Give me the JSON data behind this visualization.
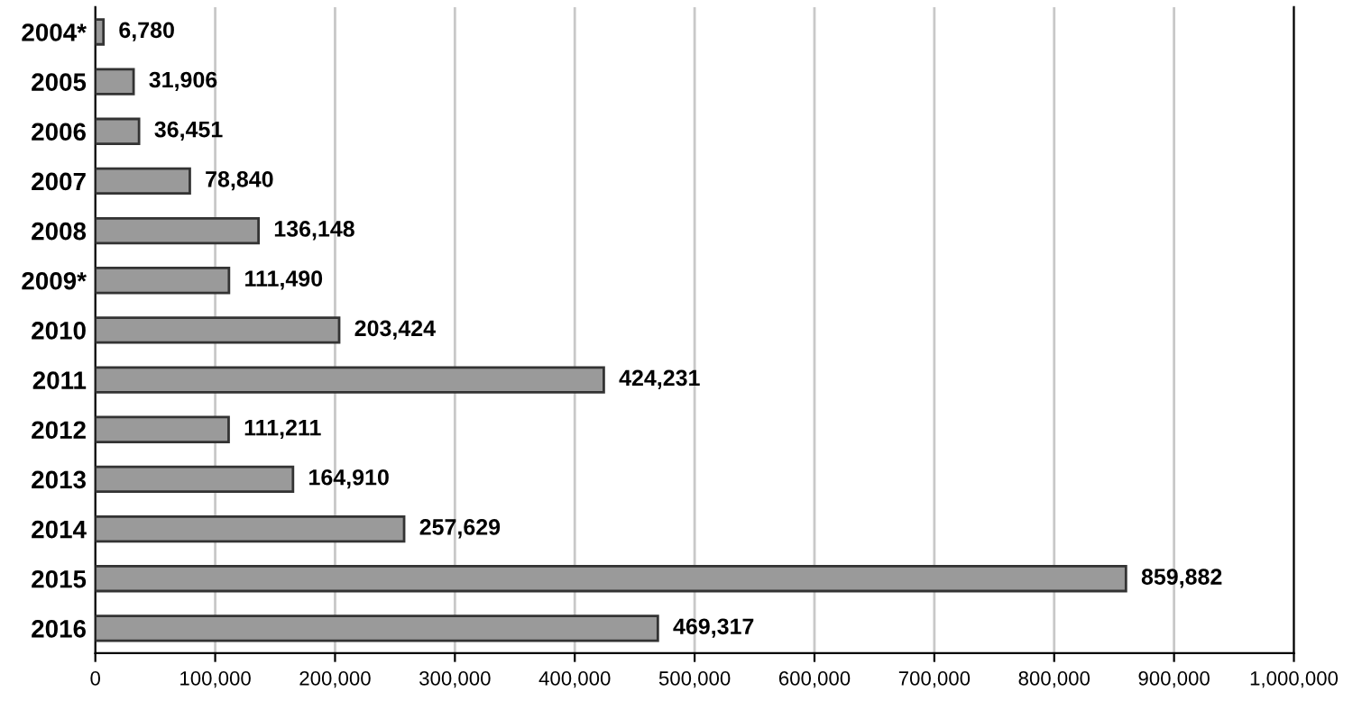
{
  "chart_data": {
    "type": "bar",
    "orientation": "horizontal",
    "categories": [
      "2004*",
      "2005",
      "2006",
      "2007",
      "2008",
      "2009*",
      "2010",
      "2011",
      "2012",
      "2013",
      "2014",
      "2015",
      "2016"
    ],
    "values": [
      6780,
      31906,
      36451,
      78840,
      136148,
      111490,
      203424,
      424231,
      111211,
      164910,
      257629,
      859882,
      469317
    ],
    "value_labels": [
      "6,780",
      "31,906",
      "36,451",
      "78,840",
      "136,148",
      "111,490",
      "203,424",
      "424,231",
      "111,211",
      "164,910",
      "257,629",
      "859,882",
      "469,317"
    ],
    "color": "#9a9a9a",
    "xlim": [
      0,
      1000000
    ],
    "xticks": [
      {
        "value": 0,
        "label": "0"
      },
      {
        "value": 100000,
        "label": "100,000"
      },
      {
        "value": 200000,
        "label": "200,000"
      },
      {
        "value": 300000,
        "label": "300,000"
      },
      {
        "value": 400000,
        "label": "400,000"
      },
      {
        "value": 500000,
        "label": "500,000"
      },
      {
        "value": 600000,
        "label": "600,000"
      },
      {
        "value": 700000,
        "label": "700,000"
      },
      {
        "value": 800000,
        "label": "800,000"
      },
      {
        "value": 900000,
        "label": "900,000"
      },
      {
        "value": 1000000,
        "label": "1,000,000"
      }
    ],
    "grid": "x"
  }
}
